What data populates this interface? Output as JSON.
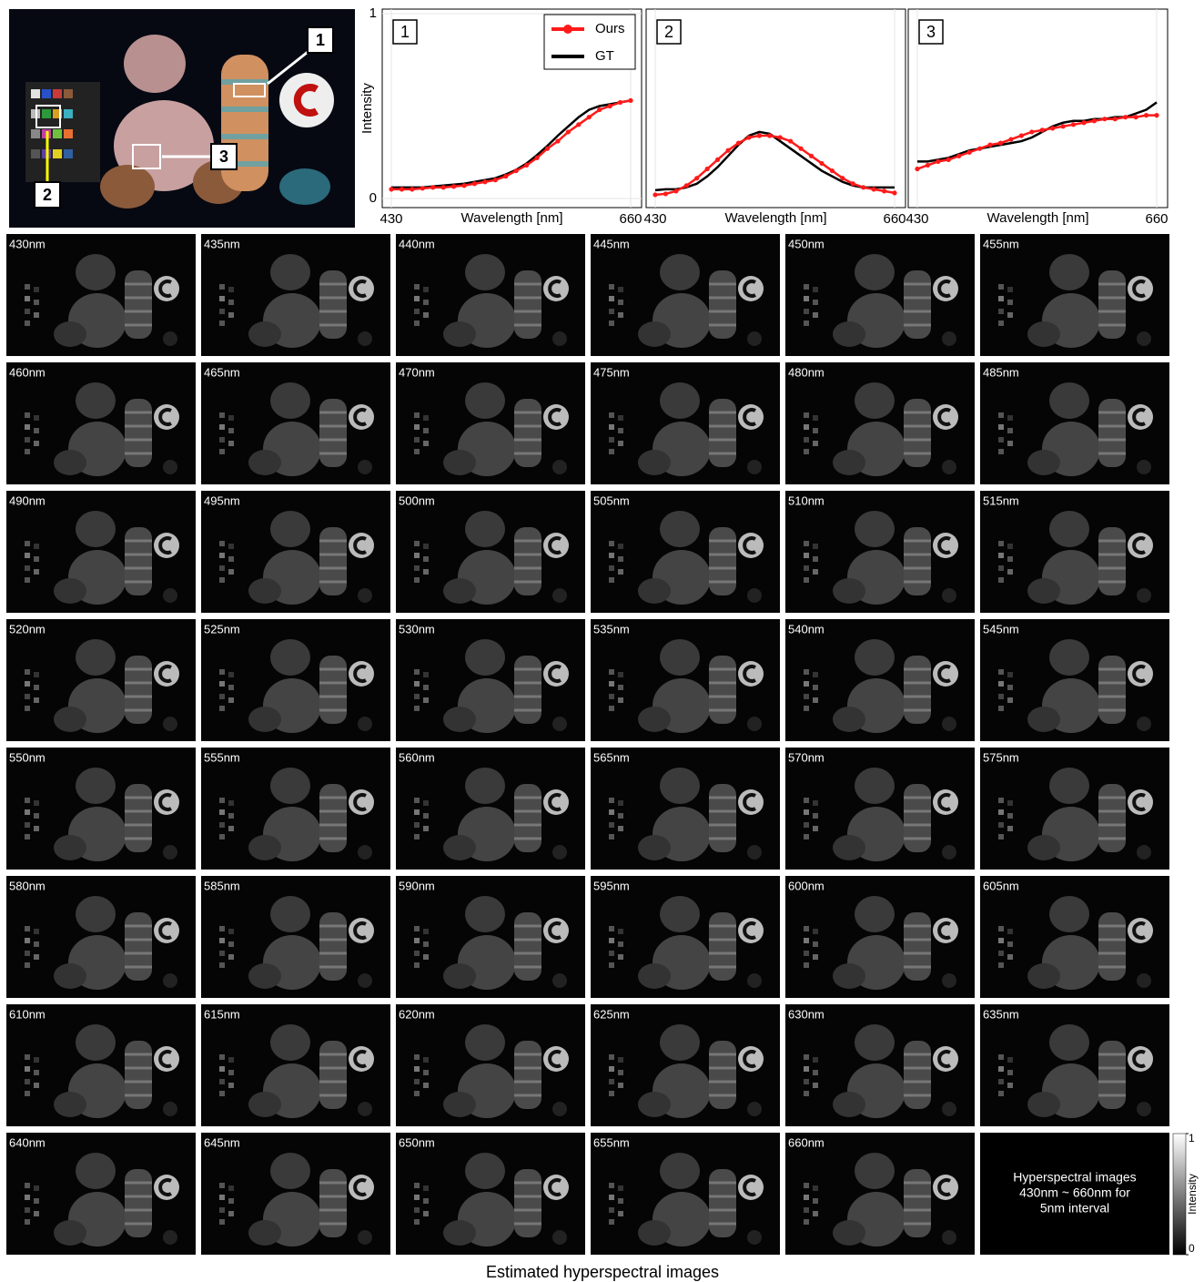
{
  "photo": {
    "markers": [
      "1",
      "2",
      "3"
    ]
  },
  "chart_data": [
    {
      "type": "line",
      "panel_label": "1",
      "ylabel": "Intensity",
      "xlabel": "Wavelength [nm]",
      "xlim": [
        430,
        660
      ],
      "xticks": [
        430,
        660
      ],
      "ylim": [
        0,
        1
      ],
      "yticks": [
        0,
        1
      ],
      "grid": true,
      "legend": "upper right",
      "x": [
        430,
        440,
        450,
        460,
        470,
        480,
        490,
        500,
        510,
        520,
        530,
        540,
        550,
        560,
        570,
        580,
        590,
        600,
        610,
        620,
        630,
        640,
        650,
        660
      ],
      "series": [
        {
          "name": "Ours",
          "color": "#ff1a1a",
          "markers": true,
          "values": [
            0.05,
            0.05,
            0.05,
            0.055,
            0.06,
            0.06,
            0.065,
            0.07,
            0.08,
            0.09,
            0.1,
            0.12,
            0.15,
            0.18,
            0.22,
            0.27,
            0.31,
            0.36,
            0.4,
            0.44,
            0.48,
            0.5,
            0.52,
            0.53
          ]
        },
        {
          "name": "GT",
          "color": "#000000",
          "values": [
            0.06,
            0.06,
            0.06,
            0.06,
            0.065,
            0.07,
            0.075,
            0.08,
            0.09,
            0.1,
            0.11,
            0.13,
            0.155,
            0.19,
            0.235,
            0.285,
            0.34,
            0.39,
            0.44,
            0.48,
            0.5,
            0.51,
            0.52,
            0.53
          ]
        }
      ]
    },
    {
      "type": "line",
      "panel_label": "2",
      "xlabel": "Wavelength [nm]",
      "xlim": [
        430,
        660
      ],
      "xticks": [
        430,
        660
      ],
      "ylim": [
        0,
        1
      ],
      "grid": true,
      "x": [
        430,
        440,
        450,
        460,
        470,
        480,
        490,
        500,
        510,
        520,
        530,
        540,
        550,
        560,
        570,
        580,
        590,
        600,
        610,
        620,
        630,
        640,
        650,
        660
      ],
      "series": [
        {
          "color": "#ff1a1a",
          "markers": true,
          "values": [
            0.02,
            0.025,
            0.04,
            0.07,
            0.11,
            0.16,
            0.21,
            0.26,
            0.3,
            0.33,
            0.34,
            0.34,
            0.33,
            0.31,
            0.27,
            0.23,
            0.19,
            0.15,
            0.11,
            0.08,
            0.06,
            0.05,
            0.04,
            0.03
          ]
        },
        {
          "color": "#000000",
          "values": [
            0.045,
            0.05,
            0.05,
            0.06,
            0.08,
            0.12,
            0.17,
            0.23,
            0.29,
            0.34,
            0.36,
            0.35,
            0.31,
            0.27,
            0.23,
            0.19,
            0.15,
            0.12,
            0.09,
            0.07,
            0.06,
            0.06,
            0.06,
            0.06
          ]
        }
      ]
    },
    {
      "type": "line",
      "panel_label": "3",
      "xlabel": "Wavelength [nm]",
      "xlim": [
        430,
        660
      ],
      "xticks": [
        430,
        660
      ],
      "ylim": [
        0,
        1
      ],
      "grid": true,
      "x": [
        430,
        440,
        450,
        460,
        470,
        480,
        490,
        500,
        510,
        520,
        530,
        540,
        550,
        560,
        570,
        580,
        590,
        600,
        610,
        620,
        630,
        640,
        650,
        660
      ],
      "series": [
        {
          "color": "#ff1a1a",
          "markers": true,
          "values": [
            0.16,
            0.18,
            0.2,
            0.21,
            0.23,
            0.25,
            0.27,
            0.29,
            0.3,
            0.32,
            0.34,
            0.36,
            0.37,
            0.38,
            0.39,
            0.4,
            0.41,
            0.42,
            0.43,
            0.43,
            0.44,
            0.44,
            0.45,
            0.45
          ]
        },
        {
          "color": "#000000",
          "values": [
            0.2,
            0.2,
            0.21,
            0.22,
            0.24,
            0.26,
            0.27,
            0.28,
            0.29,
            0.3,
            0.31,
            0.33,
            0.36,
            0.39,
            0.41,
            0.42,
            0.42,
            0.43,
            0.43,
            0.44,
            0.44,
            0.46,
            0.48,
            0.52
          ]
        }
      ]
    }
  ],
  "tiles": [
    "430nm",
    "435nm",
    "440nm",
    "445nm",
    "450nm",
    "455nm",
    "460nm",
    "465nm",
    "470nm",
    "475nm",
    "480nm",
    "485nm",
    "490nm",
    "495nm",
    "500nm",
    "505nm",
    "510nm",
    "515nm",
    "520nm",
    "525nm",
    "530nm",
    "535nm",
    "540nm",
    "545nm",
    "550nm",
    "555nm",
    "560nm",
    "565nm",
    "570nm",
    "575nm",
    "580nm",
    "585nm",
    "590nm",
    "595nm",
    "600nm",
    "605nm",
    "610nm",
    "615nm",
    "620nm",
    "625nm",
    "630nm",
    "635nm",
    "640nm",
    "645nm",
    "650nm",
    "655nm",
    "660nm"
  ],
  "note_lines": [
    "Hyperspectral images",
    "430nm ~ 660nm for",
    "5nm interval"
  ],
  "colorbar": {
    "label": "Intensity",
    "lim": [
      0,
      1
    ],
    "ticks": [
      1,
      0
    ]
  },
  "caption": "Estimated hyperspectral images"
}
